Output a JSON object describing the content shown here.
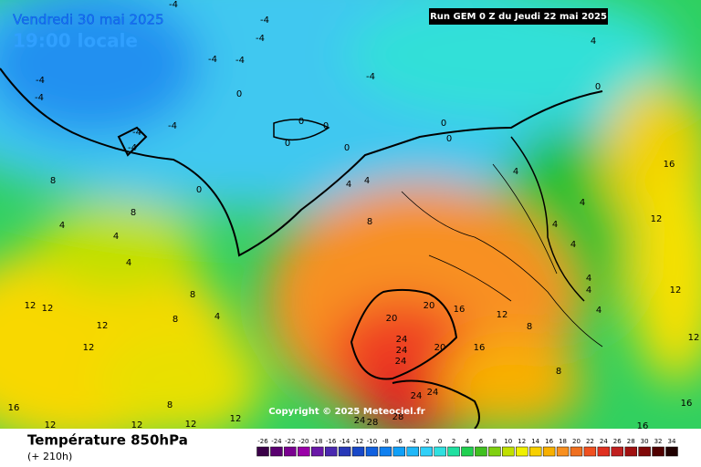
{
  "header": {
    "date": "Vendredi 30 mai 2025",
    "time": "19:00 locale",
    "run": "Run GEM 0 Z du Jeudi 22 mai 2025"
  },
  "copyright": "Copyright © 2025 Meteociel.fr",
  "footer": {
    "title": "Température 850hPa",
    "subtitle": "(+ 210h)"
  },
  "legend": {
    "ticks": [
      -26,
      -24,
      -22,
      -20,
      -18,
      -16,
      -14,
      -12,
      -10,
      -8,
      -6,
      -4,
      -2,
      0,
      2,
      4,
      6,
      8,
      10,
      12,
      14,
      16,
      18,
      20,
      22,
      24,
      26,
      28,
      30,
      32,
      34
    ],
    "colors": [
      "#3a0048",
      "#5a0070",
      "#7a0090",
      "#9a00a8",
      "#6a18a8",
      "#4a28b0",
      "#2838b8",
      "#1848c8",
      "#1060e0",
      "#1080f0",
      "#10a0f8",
      "#20b8f8",
      "#30d0f8",
      "#30e0e0",
      "#20e0a0",
      "#20d050",
      "#40c020",
      "#80d010",
      "#c0e000",
      "#f0f000",
      "#f8d000",
      "#f8b000",
      "#f89020",
      "#f07020",
      "#f05020",
      "#e03020",
      "#c02020",
      "#a01010",
      "#800808",
      "#500000",
      "#200000"
    ]
  },
  "contour_labels": [
    "-4",
    "-4",
    "-4",
    "-4",
    "-4",
    "0",
    "-4",
    "-4",
    "-4",
    "-4",
    "-4",
    "-4",
    "0",
    "0",
    "0",
    "0",
    "0",
    "0",
    "0",
    "4",
    "0",
    "4",
    "4",
    "4",
    "4",
    "4",
    "4",
    "4",
    "16",
    "12",
    "12",
    "12",
    "4",
    "4",
    "8",
    "8",
    "4",
    "8",
    "4",
    "4",
    "8",
    "4",
    "8",
    "12",
    "12",
    "12",
    "12",
    "16",
    "12",
    "12",
    "8",
    "12",
    "12",
    "20",
    "20",
    "16",
    "12",
    "24",
    "24",
    "24",
    "20",
    "16",
    "24",
    "24",
    "24",
    "28",
    "28",
    "8",
    "8",
    "16",
    "16"
  ]
}
